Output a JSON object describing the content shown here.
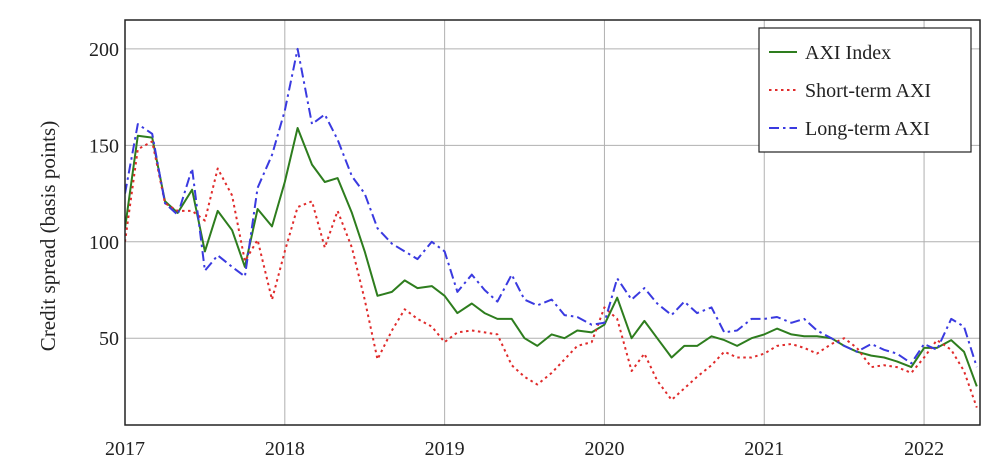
{
  "chart_data": {
    "type": "line",
    "title": "",
    "xlabel": "",
    "ylabel": "Credit spread (basis points)",
    "xlim": [
      2017,
      2022.35
    ],
    "ylim": [
      5,
      215
    ],
    "grid": true,
    "legend_position": "top-right",
    "x_ticks": [
      {
        "value": 2017,
        "label": "2017"
      },
      {
        "value": 2018,
        "label": "2018"
      },
      {
        "value": 2019,
        "label": "2019"
      },
      {
        "value": 2020,
        "label": "2020"
      },
      {
        "value": 2021,
        "label": "2021"
      },
      {
        "value": 2022,
        "label": "2022"
      }
    ],
    "y_ticks": [
      {
        "value": 50,
        "label": "50"
      },
      {
        "value": 100,
        "label": "100"
      },
      {
        "value": 150,
        "label": "150"
      },
      {
        "value": 200,
        "label": "200"
      }
    ],
    "series": [
      {
        "name": "AXI Index",
        "color": "#2e7d1e",
        "dash": "solid",
        "points": [
          [
            2017.0,
            107
          ],
          [
            2017.08,
            155
          ],
          [
            2017.17,
            154
          ],
          [
            2017.25,
            121
          ],
          [
            2017.33,
            115
          ],
          [
            2017.42,
            127
          ],
          [
            2017.5,
            95
          ],
          [
            2017.58,
            116
          ],
          [
            2017.67,
            106
          ],
          [
            2017.75,
            87
          ],
          [
            2017.83,
            117
          ],
          [
            2017.92,
            108
          ],
          [
            2018.0,
            131
          ],
          [
            2018.08,
            159
          ],
          [
            2018.17,
            140
          ],
          [
            2018.25,
            131
          ],
          [
            2018.33,
            133
          ],
          [
            2018.42,
            115
          ],
          [
            2018.5,
            95
          ],
          [
            2018.58,
            72
          ],
          [
            2018.67,
            74
          ],
          [
            2018.75,
            80
          ],
          [
            2018.83,
            76
          ],
          [
            2018.92,
            77
          ],
          [
            2019.0,
            72
          ],
          [
            2019.08,
            63
          ],
          [
            2019.17,
            68
          ],
          [
            2019.25,
            63
          ],
          [
            2019.33,
            60
          ],
          [
            2019.42,
            60
          ],
          [
            2019.5,
            50
          ],
          [
            2019.58,
            46
          ],
          [
            2019.67,
            52
          ],
          [
            2019.75,
            50
          ],
          [
            2019.83,
            54
          ],
          [
            2019.92,
            53
          ],
          [
            2020.0,
            57
          ],
          [
            2020.08,
            71
          ],
          [
            2020.17,
            50
          ],
          [
            2020.25,
            59
          ],
          [
            2020.33,
            50
          ],
          [
            2020.42,
            40
          ],
          [
            2020.5,
            46
          ],
          [
            2020.58,
            46
          ],
          [
            2020.67,
            51
          ],
          [
            2020.75,
            49
          ],
          [
            2020.83,
            46
          ],
          [
            2020.92,
            50
          ],
          [
            2021.0,
            52
          ],
          [
            2021.08,
            55
          ],
          [
            2021.17,
            52
          ],
          [
            2021.25,
            51
          ],
          [
            2021.33,
            51
          ],
          [
            2021.42,
            50
          ],
          [
            2021.5,
            46
          ],
          [
            2021.58,
            43
          ],
          [
            2021.67,
            41
          ],
          [
            2021.75,
            40
          ],
          [
            2021.83,
            38
          ],
          [
            2021.92,
            35
          ],
          [
            2022.0,
            45
          ],
          [
            2022.08,
            45
          ],
          [
            2022.17,
            49
          ],
          [
            2022.25,
            43
          ],
          [
            2022.33,
            25
          ]
        ]
      },
      {
        "name": "Short-term AXI",
        "color": "#e02b2b",
        "dash": "dotted",
        "points": [
          [
            2017.0,
            100
          ],
          [
            2017.08,
            148
          ],
          [
            2017.17,
            152
          ],
          [
            2017.25,
            120
          ],
          [
            2017.33,
            116
          ],
          [
            2017.42,
            116
          ],
          [
            2017.5,
            111
          ],
          [
            2017.58,
            138
          ],
          [
            2017.67,
            124
          ],
          [
            2017.75,
            90
          ],
          [
            2017.83,
            101
          ],
          [
            2017.92,
            70
          ],
          [
            2018.0,
            95
          ],
          [
            2018.08,
            118
          ],
          [
            2018.17,
            121
          ],
          [
            2018.25,
            97
          ],
          [
            2018.33,
            116
          ],
          [
            2018.42,
            97
          ],
          [
            2018.5,
            70
          ],
          [
            2018.58,
            39
          ],
          [
            2018.67,
            54
          ],
          [
            2018.75,
            65
          ],
          [
            2018.83,
            60
          ],
          [
            2018.92,
            56
          ],
          [
            2019.0,
            48
          ],
          [
            2019.08,
            53
          ],
          [
            2019.17,
            54
          ],
          [
            2019.25,
            53
          ],
          [
            2019.33,
            52
          ],
          [
            2019.42,
            36
          ],
          [
            2019.5,
            30
          ],
          [
            2019.58,
            26
          ],
          [
            2019.67,
            32
          ],
          [
            2019.75,
            39
          ],
          [
            2019.83,
            46
          ],
          [
            2019.92,
            48
          ],
          [
            2020.0,
            66
          ],
          [
            2020.08,
            60
          ],
          [
            2020.17,
            33
          ],
          [
            2020.25,
            42
          ],
          [
            2020.33,
            28
          ],
          [
            2020.42,
            18
          ],
          [
            2020.5,
            24
          ],
          [
            2020.58,
            30
          ],
          [
            2020.67,
            36
          ],
          [
            2020.75,
            43
          ],
          [
            2020.83,
            40
          ],
          [
            2020.92,
            40
          ],
          [
            2021.0,
            42
          ],
          [
            2021.08,
            46
          ],
          [
            2021.17,
            47
          ],
          [
            2021.25,
            45
          ],
          [
            2021.33,
            42
          ],
          [
            2021.42,
            47
          ],
          [
            2021.5,
            50
          ],
          [
            2021.58,
            45
          ],
          [
            2021.67,
            35
          ],
          [
            2021.75,
            36
          ],
          [
            2021.83,
            35
          ],
          [
            2021.92,
            32
          ],
          [
            2022.0,
            40
          ],
          [
            2022.08,
            49
          ],
          [
            2022.17,
            44
          ],
          [
            2022.25,
            33
          ],
          [
            2022.33,
            14
          ]
        ]
      },
      {
        "name": "Long-term AXI",
        "color": "#3a3ae0",
        "dash": "dashdot",
        "points": [
          [
            2017.0,
            125
          ],
          [
            2017.08,
            161
          ],
          [
            2017.17,
            156
          ],
          [
            2017.25,
            120
          ],
          [
            2017.33,
            114
          ],
          [
            2017.42,
            138
          ],
          [
            2017.5,
            85
          ],
          [
            2017.58,
            93
          ],
          [
            2017.67,
            87
          ],
          [
            2017.75,
            82
          ],
          [
            2017.83,
            128
          ],
          [
            2017.92,
            145
          ],
          [
            2018.0,
            168
          ],
          [
            2018.08,
            200
          ],
          [
            2018.17,
            161
          ],
          [
            2018.25,
            166
          ],
          [
            2018.33,
            153
          ],
          [
            2018.42,
            134
          ],
          [
            2018.5,
            125
          ],
          [
            2018.58,
            107
          ],
          [
            2018.67,
            99
          ],
          [
            2018.75,
            95
          ],
          [
            2018.83,
            91
          ],
          [
            2018.92,
            100
          ],
          [
            2019.0,
            95
          ],
          [
            2019.08,
            74
          ],
          [
            2019.17,
            83
          ],
          [
            2019.25,
            75
          ],
          [
            2019.33,
            69
          ],
          [
            2019.42,
            83
          ],
          [
            2019.5,
            70
          ],
          [
            2019.58,
            67
          ],
          [
            2019.67,
            70
          ],
          [
            2019.75,
            62
          ],
          [
            2019.83,
            61
          ],
          [
            2019.92,
            57
          ],
          [
            2020.0,
            58
          ],
          [
            2020.08,
            81
          ],
          [
            2020.17,
            70
          ],
          [
            2020.25,
            76
          ],
          [
            2020.33,
            68
          ],
          [
            2020.42,
            62
          ],
          [
            2020.5,
            69
          ],
          [
            2020.58,
            63
          ],
          [
            2020.67,
            66
          ],
          [
            2020.75,
            53
          ],
          [
            2020.83,
            54
          ],
          [
            2020.92,
            60
          ],
          [
            2021.0,
            60
          ],
          [
            2021.08,
            61
          ],
          [
            2021.17,
            58
          ],
          [
            2021.25,
            60
          ],
          [
            2021.33,
            54
          ],
          [
            2021.42,
            50
          ],
          [
            2021.5,
            46
          ],
          [
            2021.58,
            43
          ],
          [
            2021.67,
            47
          ],
          [
            2021.75,
            44
          ],
          [
            2021.83,
            42
          ],
          [
            2021.92,
            37
          ],
          [
            2022.0,
            47
          ],
          [
            2022.08,
            44
          ],
          [
            2022.17,
            60
          ],
          [
            2022.25,
            56
          ],
          [
            2022.33,
            35
          ]
        ]
      }
    ]
  }
}
